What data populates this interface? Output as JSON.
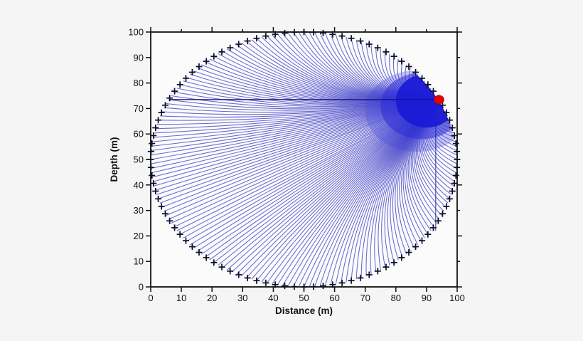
{
  "page": {
    "background_color": "#f5f5f5",
    "plot_background_color": "#fbfbfb"
  },
  "chart_data": {
    "type": "line",
    "subtype": "ray-path-fan",
    "title": "",
    "xlabel": "Distance (m)",
    "ylabel": "Depth (m)",
    "xlim": [
      0,
      100
    ],
    "ylim": [
      0,
      100
    ],
    "xticks": [
      0,
      10,
      20,
      30,
      40,
      50,
      60,
      70,
      80,
      90,
      100
    ],
    "yticks": [
      0,
      10,
      20,
      30,
      40,
      50,
      60,
      70,
      80,
      90,
      100
    ],
    "grid": false,
    "frame_box": true,
    "tick_style": "outward; labeled every 10 on left and bottom; major every 20 with minor every 10 on top and right",
    "domain_circle": {
      "center_x": 50,
      "center_y": 50,
      "radius": 50
    },
    "source_point": {
      "x": 94.1,
      "y": 73.5,
      "marker": "filled-circle",
      "color": "#e60000"
    },
    "receivers": {
      "count": 100,
      "placement": "evenly spaced on domain_circle",
      "angle_step_deg": 3.6,
      "start_angle_deg": 0,
      "marker": "+",
      "color": "#0d0d28"
    },
    "rays": {
      "count": 180,
      "from": "source_point",
      "to": "points on domain_circle every 2 degrees",
      "endpoint_angle_step_deg": 2,
      "shape": "slight bow toward circle center",
      "color": "#4040c8"
    },
    "dense_focus_region": {
      "description_center_x": 90,
      "description_center_y": 73,
      "color": "#1a1ad6"
    },
    "caustics": {
      "horizontal": {
        "y": 73.5,
        "x_from": 6,
        "x_to": 94,
        "color": "#14147a"
      },
      "vertical": {
        "x": 93,
        "y_from": 22,
        "y_to": 65,
        "color": "#2020b0"
      }
    },
    "axis_color": "#111111"
  }
}
